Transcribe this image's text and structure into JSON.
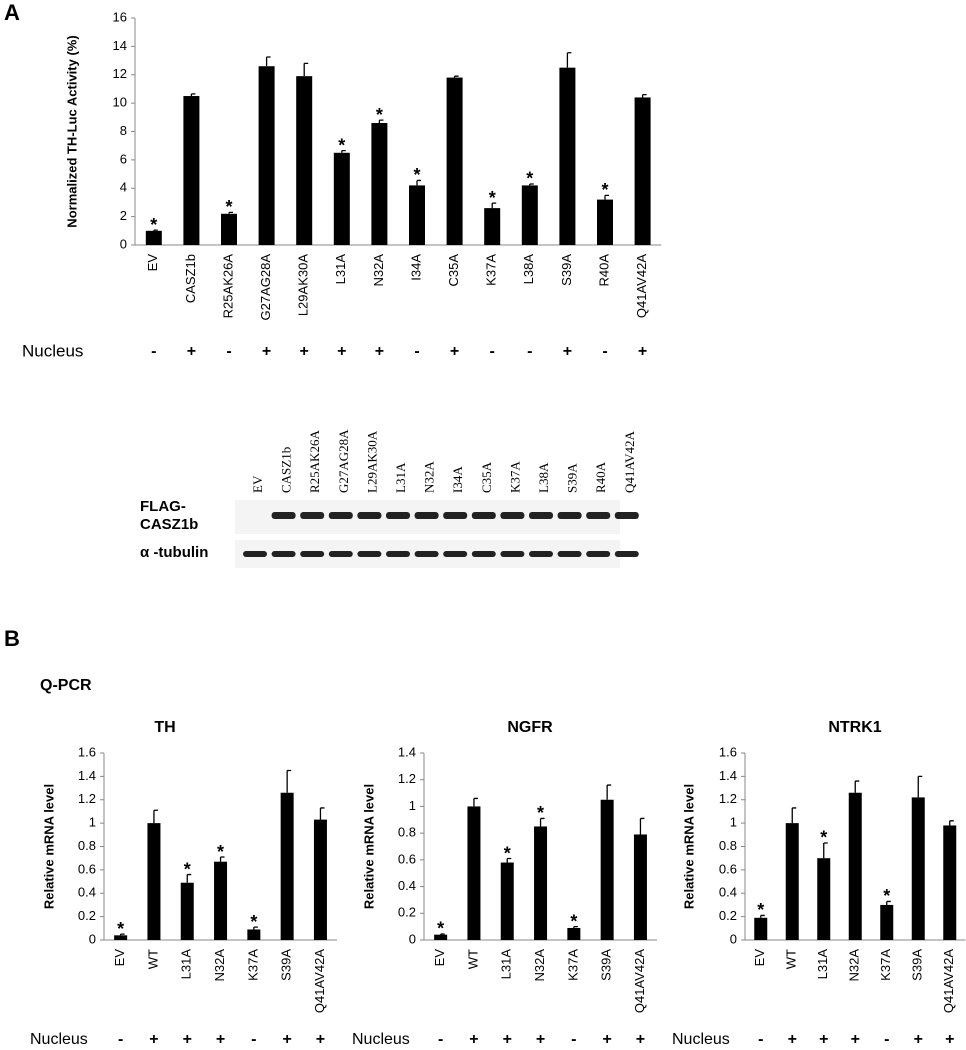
{
  "panels": {
    "a": "A",
    "b": "B"
  },
  "qpcr_label": "Q-PCR",
  "blot": {
    "lanes": [
      "EV",
      "CASZ1b",
      "R25AK26A",
      "G27AG28A",
      "L29AK30A",
      "L31A",
      "N32A",
      "I34A",
      "C35A",
      "K37A",
      "L38A",
      "S39A",
      "R40A",
      "Q41AV42A"
    ],
    "rows": [
      {
        "label": [
          "FLAG-",
          "CASZ1b"
        ]
      },
      {
        "label": [
          "α -tubulin"
        ]
      }
    ]
  },
  "chart_data": [
    {
      "type": "bar",
      "y_label": "Normalized TH-Luc Activity (%)",
      "categories": [
        "EV",
        "CASZ1b",
        "R25AK26A",
        "G27AG28A",
        "L29AK30A",
        "L31A",
        "N32A",
        "I34A",
        "C35A",
        "K37A",
        "L38A",
        "S39A",
        "R40A",
        "Q41AV42A"
      ],
      "values": [
        1.0,
        10.5,
        2.2,
        12.6,
        11.9,
        6.5,
        8.6,
        4.2,
        11.8,
        2.6,
        4.2,
        12.5,
        3.2,
        10.4
      ],
      "errors": [
        0.05,
        0.15,
        0.1,
        0.65,
        0.9,
        0.15,
        0.2,
        0.35,
        0.1,
        0.35,
        0.1,
        1.05,
        0.3,
        0.2
      ],
      "significance": [
        "*",
        null,
        "*",
        null,
        null,
        "*",
        "*",
        "*",
        null,
        "*",
        "*",
        null,
        "*",
        null
      ],
      "nucleus_label": "Nucleus",
      "nucleus": [
        "-",
        "+",
        "-",
        "+",
        "+",
        "+",
        "+",
        "-",
        "+",
        "-",
        "-",
        "+",
        "-",
        "+"
      ],
      "color": "#000000",
      "ylim": [
        0,
        16
      ],
      "yticks": [
        0,
        2,
        4,
        6,
        8,
        10,
        12,
        14,
        16
      ]
    },
    {
      "type": "bar",
      "title": "TH",
      "y_label": "Relative mRNA level",
      "categories": [
        "EV",
        "WT",
        "L31A",
        "N32A",
        "K37A",
        "S39A",
        "Q41AV42A"
      ],
      "values": [
        0.04,
        1.0,
        0.49,
        0.67,
        0.09,
        1.26,
        1.03
      ],
      "errors": [
        0.01,
        0.11,
        0.07,
        0.04,
        0.02,
        0.19,
        0.1
      ],
      "significance": [
        "*",
        null,
        "*",
        "*",
        "*",
        null,
        null
      ],
      "nucleus_label": "Nucleus",
      "nucleus": [
        "-",
        "+",
        "+",
        "+",
        "-",
        "+",
        "+"
      ],
      "color": "#000000",
      "ylim": [
        0,
        1.6
      ],
      "yticks": [
        0,
        0.2,
        0.4,
        0.6,
        0.8,
        1,
        1.2,
        1.4,
        1.6
      ]
    },
    {
      "type": "bar",
      "title": "NGFR",
      "y_label": "Relative mRNA level",
      "categories": [
        "EV",
        "WT",
        "L31A",
        "N32A",
        "K37A",
        "S39A",
        "Q41AV42A"
      ],
      "values": [
        0.04,
        1.0,
        0.58,
        0.85,
        0.09,
        1.05,
        0.79
      ],
      "errors": [
        0.005,
        0.06,
        0.03,
        0.06,
        0.01,
        0.11,
        0.12
      ],
      "significance": [
        "*",
        null,
        "*",
        "*",
        "*",
        null,
        null
      ],
      "nucleus_label": "Nucleus",
      "nucleus": [
        "-",
        "+",
        "+",
        "+",
        "-",
        "+",
        "+"
      ],
      "color": "#000000",
      "ylim": [
        0,
        1.4
      ],
      "yticks": [
        0,
        0.2,
        0.4,
        0.6,
        0.8,
        1,
        1.2,
        1.4
      ]
    },
    {
      "type": "bar",
      "title": "NTRK1",
      "y_label": "Relative mRNA level",
      "categories": [
        "EV",
        "WT",
        "L31A",
        "N32A",
        "K37A",
        "S39A",
        "Q41AV42A"
      ],
      "values": [
        0.19,
        1.0,
        0.7,
        1.26,
        0.3,
        1.22,
        0.98
      ],
      "errors": [
        0.02,
        0.13,
        0.13,
        0.1,
        0.03,
        0.18,
        0.04
      ],
      "significance": [
        "*",
        null,
        "*",
        null,
        "*",
        null,
        null
      ],
      "nucleus_label": "Nucleus",
      "nucleus": [
        "-",
        "+",
        "+",
        "+",
        "-",
        "+",
        "+"
      ],
      "color": "#000000",
      "ylim": [
        0,
        1.6
      ],
      "yticks": [
        0,
        0.2,
        0.4,
        0.6,
        0.8,
        1,
        1.2,
        1.4,
        1.6
      ]
    }
  ]
}
